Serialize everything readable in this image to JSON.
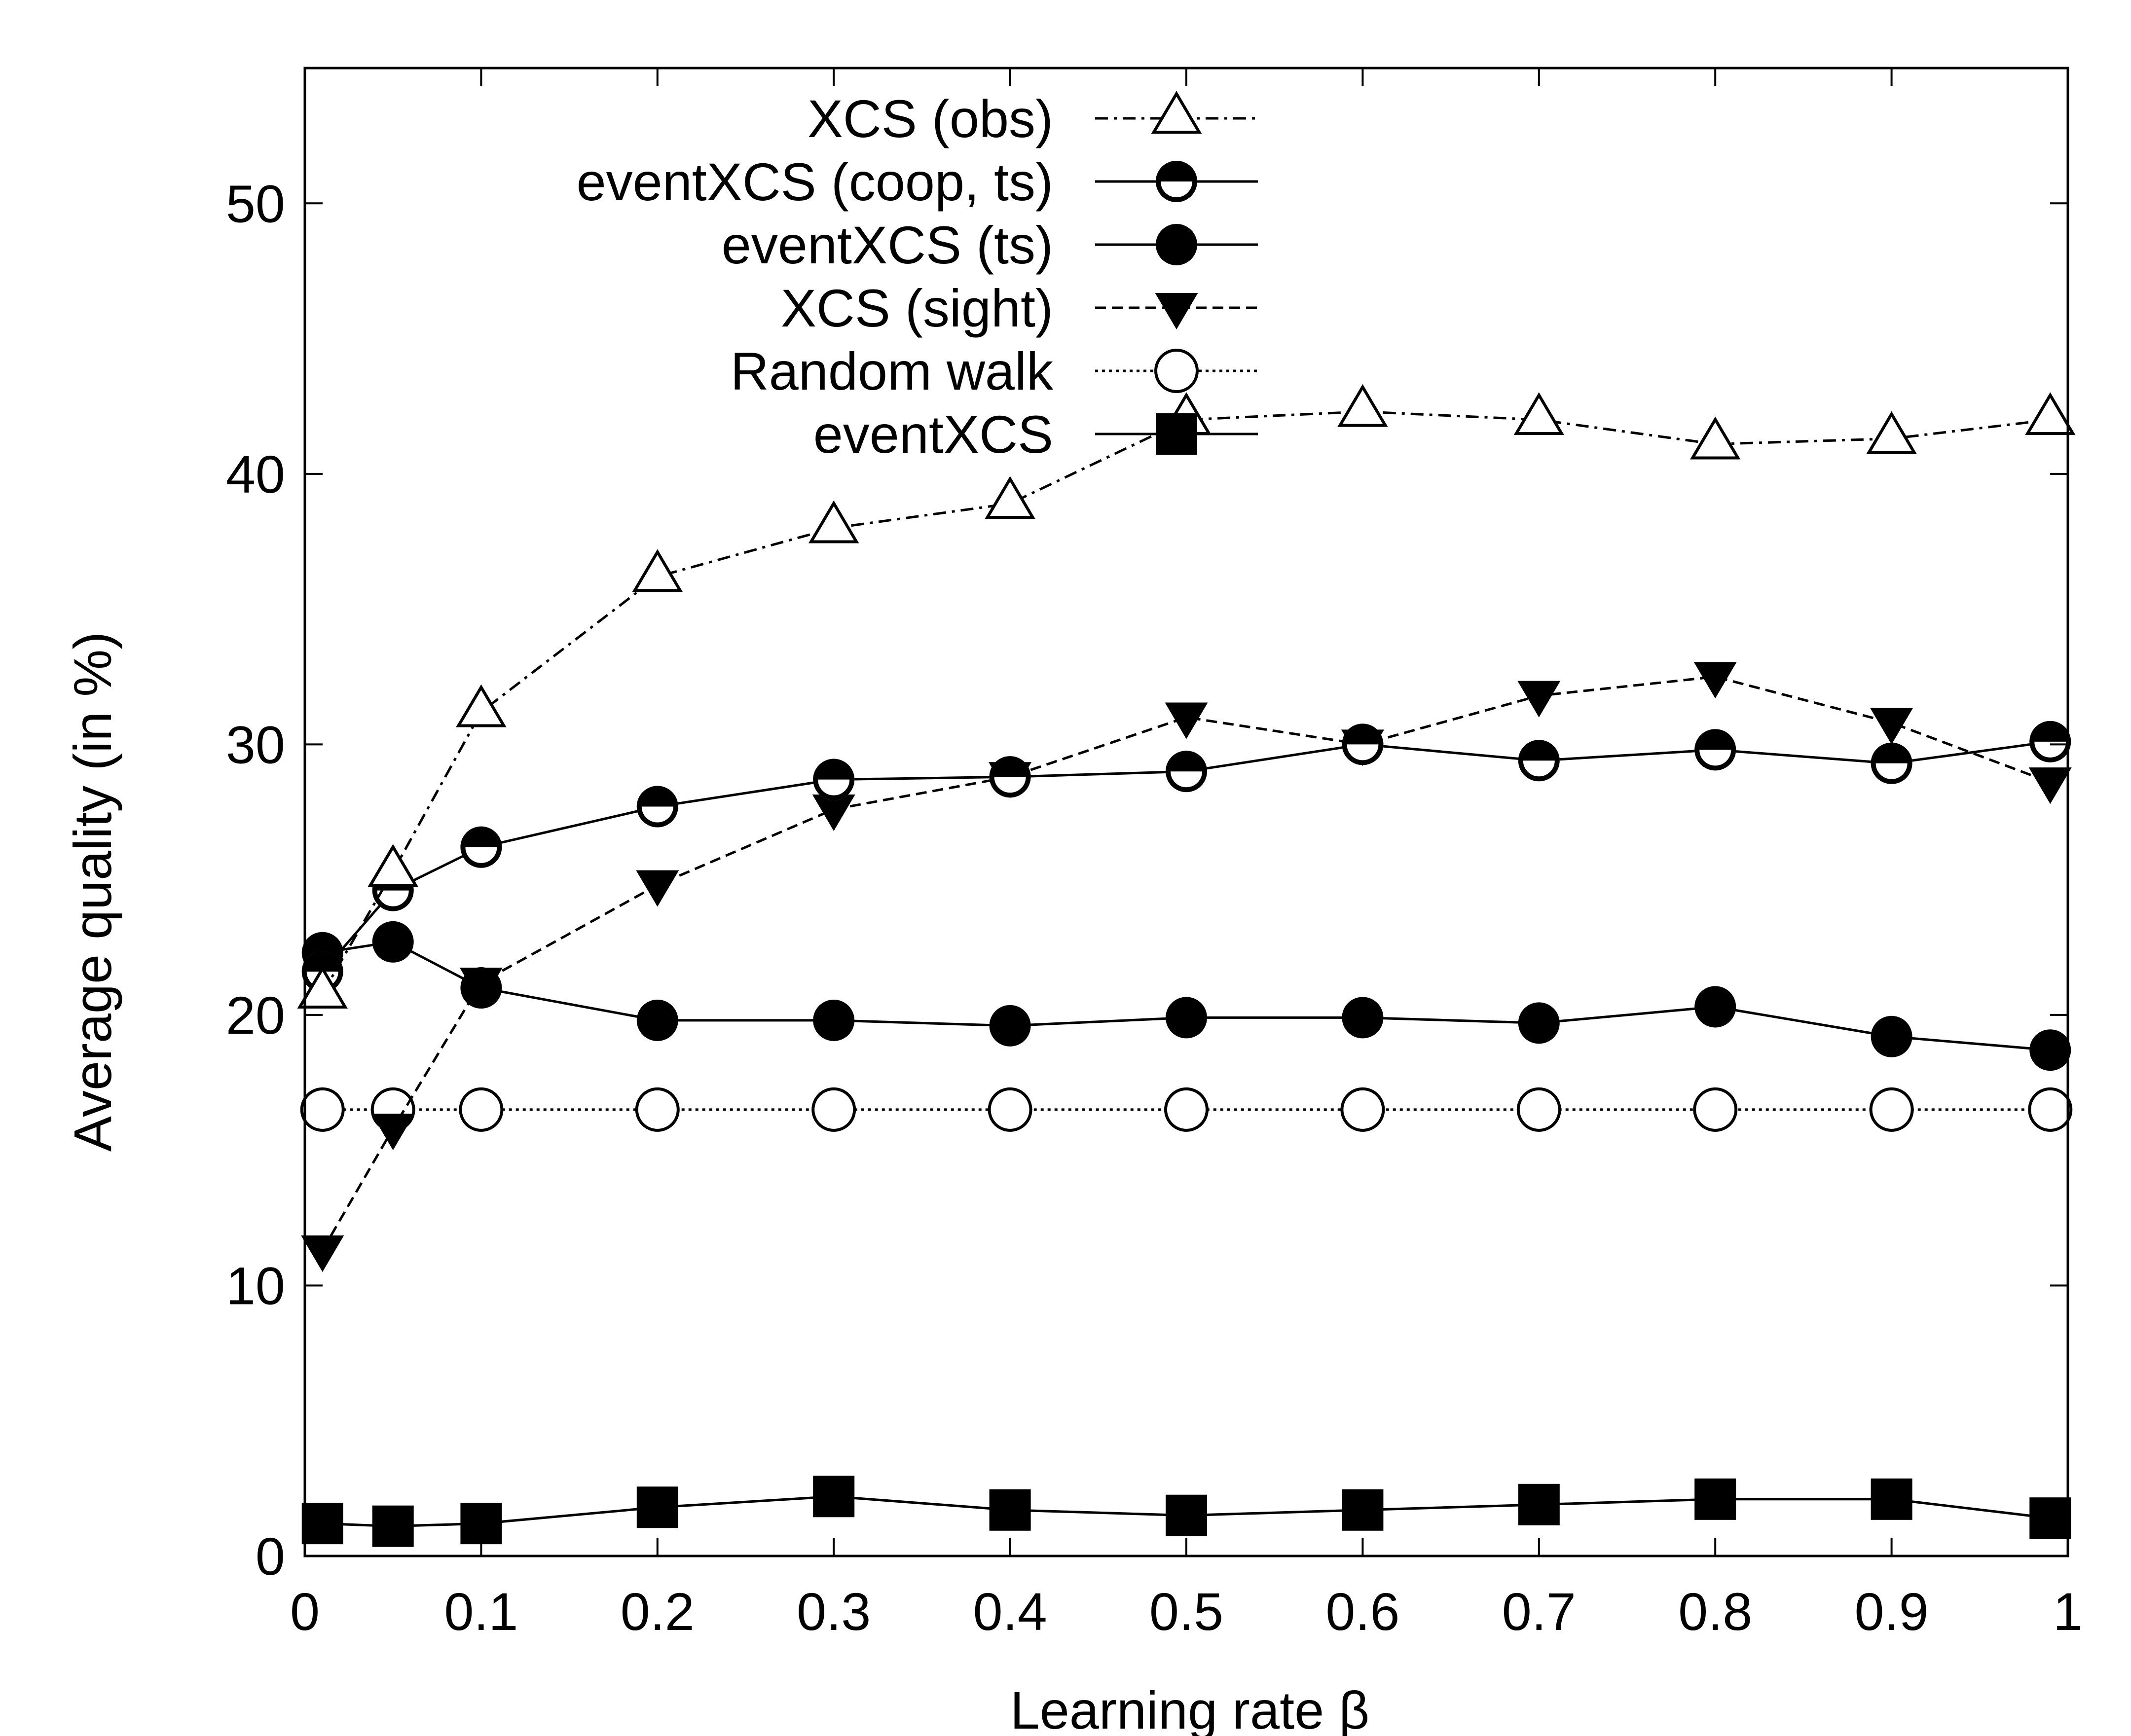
{
  "chart_data": {
    "type": "line",
    "title": "",
    "xlabel": "Learning rate β",
    "ylabel": "Average quality (in %)",
    "xlim": [
      0,
      1
    ],
    "ylim": [
      0,
      55
    ],
    "xticks": [
      "0",
      "0.1",
      "0.2",
      "0.3",
      "0.4",
      "0.5",
      "0.6",
      "0.7",
      "0.8",
      "0.9",
      "1"
    ],
    "yticks": [
      "0",
      "10",
      "20",
      "30",
      "40",
      "50"
    ],
    "grid": false,
    "legend_position": "top-center",
    "x": [
      0.01,
      0.05,
      0.1,
      0.2,
      0.3,
      0.4,
      0.5,
      0.6,
      0.7,
      0.8,
      0.9,
      0.99
    ],
    "series": [
      {
        "name": "XCS (obs)",
        "marker": "triangle-up-open",
        "dash": "dash-dot",
        "values": [
          20.8,
          25.3,
          31.2,
          36.2,
          38.0,
          38.9,
          42.0,
          42.3,
          42.0,
          41.1,
          41.3,
          42.0
        ]
      },
      {
        "name": "eventXCS (coop, ts)",
        "marker": "half-filled-circle",
        "dash": "solid",
        "values": [
          21.6,
          24.6,
          26.2,
          27.7,
          28.7,
          28.8,
          29.0,
          30.0,
          29.4,
          29.8,
          29.3,
          30.1
        ]
      },
      {
        "name": "eventXCS (ts)",
        "marker": "filled-circle",
        "dash": "solid",
        "values": [
          22.3,
          22.7,
          21.0,
          19.8,
          19.8,
          19.6,
          19.9,
          19.9,
          19.7,
          20.3,
          19.2,
          18.7
        ]
      },
      {
        "name": "XCS (sight)",
        "marker": "triangle-down-filled",
        "dash": "dashed",
        "values": [
          11.3,
          15.8,
          21.2,
          24.8,
          27.6,
          28.8,
          31.0,
          30.0,
          31.8,
          32.5,
          30.8,
          28.6
        ]
      },
      {
        "name": "Random walk",
        "marker": "open-circle",
        "dash": "dotted",
        "values": [
          16.5,
          16.5,
          16.5,
          16.5,
          16.5,
          16.5,
          16.5,
          16.5,
          16.5,
          16.5,
          16.5,
          16.5
        ]
      },
      {
        "name": "eventXCS",
        "marker": "filled-square",
        "dash": "solid",
        "values": [
          1.2,
          1.1,
          1.2,
          1.8,
          2.2,
          1.7,
          1.5,
          1.7,
          1.9,
          2.1,
          2.1,
          1.4
        ]
      }
    ]
  }
}
